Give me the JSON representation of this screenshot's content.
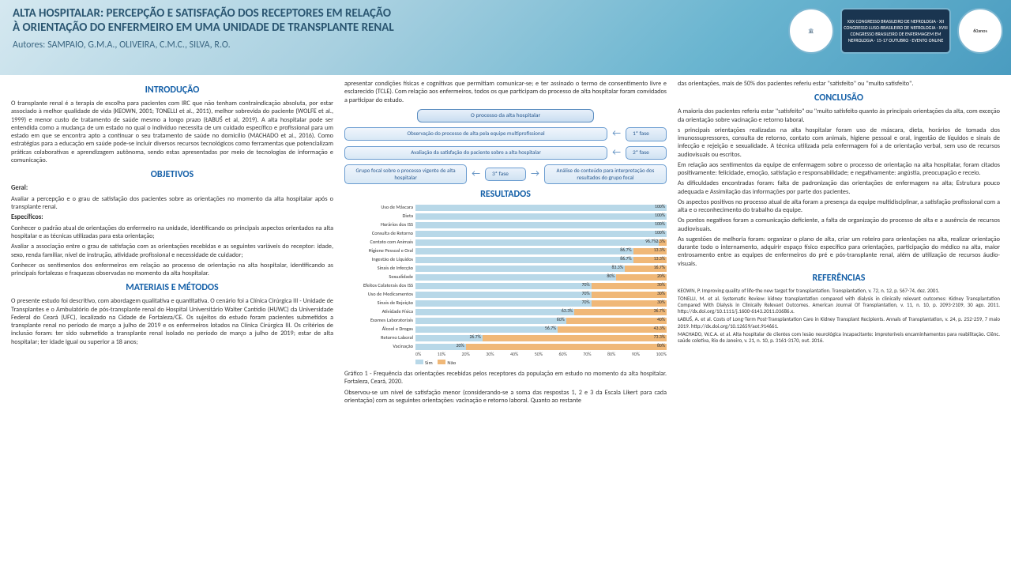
{
  "header": {
    "title_l1": "ALTA HOSPITALAR: PERCEPÇÃO E SATISFAÇÃO DOS RECEPTORES EM RELAÇÃO",
    "title_l2": "À ORIENTAÇÃO DO ENFERMEIRO EM UMA UNIDADE DE TRANSPLANTE RENAL",
    "authors": "Autores: SAMPAIO, G.M.A., OLIVEIRA, C.M.C., SILVA, R.O.",
    "logo_text": "XXX CONGRESSO BRASILEIRO DE NEFROLOGIA · XII CONGRESSO LUSO-BRASILEIRO DE NEFROLOGIA · XVIII CONGRESSO BRASILEIRO DE ENFERMAGEM EM NEFROLOGIA · 15-17 OUTUBRO · EVENTO ONLINE",
    "logo_years": "60anos"
  },
  "sections": {
    "intro_h": "INTRODUÇÃO",
    "intro": "O transplante renal é a terapia de escolha para pacientes com IRC que não tenham contraindicação absoluta, por estar associado à melhor qualidade de vida (KEOWN, 2001; TONELLI et al., 2011), melhor sobrevida do paciente (WOLFE et al., 1999) e menor custo de tratamento de saúde mesmo a longo prazo (ŁABUŚ et al, 2019). A alta hospitalar pode ser entendida como a mudança de um estado no qual o indivíduo necessita de um cuidado específico e profissional para um estado em que se encontra apto a continuar o seu tratamento de saúde no domicílio (MACHADO et al., 2016). Como estratégias para a educação em saúde pode-se incluir diversos recursos tecnológicos como ferramentas que potencializam práticas colaborativas e aprendizagem autônoma, sendo estas apresentadas por meio de tecnologias de informação e comunicação.",
    "obj_h": "OBJETIVOS",
    "obj_geral_label": "Geral:",
    "obj_geral": "Avaliar a percepção e o grau de satisfação dos pacientes sobre as orientações no momento da alta hospitalar após o transplante renal.",
    "obj_esp_label": "Específicos:",
    "obj_esp1": "Conhecer o padrão atual de orientações do enfermeiro na unidade, identificando os principais aspectos orientados na alta hospitalar e as técnicas utilizadas para esta orientação;",
    "obj_esp2": "Avaliar a associação entre o grau de satisfação com as orientações recebidas e as seguintes variáveis do receptor: idade, sexo, renda familiar, nível de instrução, atividade profissional e necessidade de cuidador;",
    "obj_esp3": "Conhecer os sentimentos dos enfermeiros em relação ao processo de orientação na alta hospitalar, identificando as principais fortalezas e fraquezas observadas no momento da alta hospitalar.",
    "mat_h": "MATERIAIS E MÉTODOS",
    "mat": "O presente estudo foi descritivo, com abordagem qualitativa e quantitativa. O cenário foi a Clínica Cirúrgica III - Unidade de Transplantes e o Ambulatório de pós-transplante renal do Hospital Universitário Walter Cantídio (HUWC) da Universidade Federal do Ceará (UFC), localizado na Cidade de Fortaleza/CE. Os sujeitos do estudo foram pacientes submetidos a transplante renal no período de março a julho de 2019 e os enfermeiros lotados na Clínica Cirúrgica III. Os critérios de inclusão foram: ter sido submetido a transplante renal isolado no período de março a julho de 2019; estar de alta hospitalar; ter idade igual ou superior a 18 anos;",
    "mat_cont": "apresentar condições físicas e cognitivas que permitiam comunicar-se; e ter assinado o termo de consentimento livre e esclarecido (TCLE). Com relação aos enfermeiros, todos os que participam do processo de alta hospitalar foram convidados a participar do estudo.",
    "res_h": "RESULTADOS",
    "caption": "Gráfico 1 - Frequência das orientações recebidas pelos receptores da população em estudo no momento da alta hospitalar. Fortaleza, Ceará, 2020.",
    "res_text": "Observou-se um nível de satisfação menor (considerando-se a soma das respostas 1, 2 e 3 da Escala Likert para cada orientação) com as seguintes orientações: vacinação e retorno laboral. Quanto ao restante",
    "res_cont": "das orientações, mais de 50% dos pacientes referiu estar \"satisfeito\" ou \"muito satisfeito\".",
    "conc_h": "CONCLUSÃO",
    "conc1": "A maioria dos pacientes referiu estar \"satisfeito\" ou \"muito satisfeito quanto às principais orientações da alta, com exceção da orientação sobre vacinação e retorno laboral.",
    "conc2": "s principais orientações realizadas na alta hospitalar foram uso de máscara, dieta, horários de tomada dos imunossupressores, consulta de retorno, contato com animais, higiene pessoal e oral, ingestão de líquidos e sinais de infecção e rejeição e sexualidade. A técnica utilizada pela enfermagem foi a de orientação verbal, sem uso de recursos audiovisuais ou escritos.",
    "conc3": "Em relação aos sentimentos da equipe de enfermagem sobre o processo de orientação na alta hospitalar, foram citados positivamente: felicidade, emoção, satisfação e responsabilidade; e negativamente: angústia, preocupação e receio.",
    "conc4": "As dificuldades encontradas foram: falta de padronização das orientações de enfermagem na alta; Estrutura pouco adequada e Assimilação das informações por parte dos pacientes.",
    "conc5": "Os aspectos positivos no processo atual de alta foram a presença da equipe multidisciplinar, a satisfação profissional com a alta e o reconhecimento do trabalho da equipe.",
    "conc6": "Os pontos negativos foram a comunicação deficiente, a falta de organização do processo de alta e a ausência de recursos audiovisuais.",
    "conc7": "As sugestões de melhoria foram: organizar o plano de alta, criar um roteiro para orientações na alta, realizar orientação durante todo o internamento, adquirir espaço físico específico para orientações, participação do médico na alta, maior entrosamento entre as equipes de enfermeiros do pré e pós-transplante renal, além de utilização de recursos áudio-visuais.",
    "ref_h": "REFERÊNCIAS",
    "ref1": "KEOWN, P. Improving quality of life-the new target for transplantation. Transplantation, v. 72, n. 12, p. S67-74, dez. 2001.",
    "ref2": "TONELLI, M. et al. Systematic Review: kidney transplantation compared with dialysis in clinically relevant outcomes: Kidney Transplantation Compared With Dialysis in Clinically Relevant Outcomes. American Journal Of Transplantation, v. 11, n. 10, p. 2093-2109, 30 ago. 2011. http://dx.doi.org/10.1111/j.1600-6143.2011.03686.x.",
    "ref3": "ŁABUŚ, A. et al. Costs of Long-Term Post-Transplantation Care in Kidney Transplant Recipients. Annals of Transplantation, v. 24, p. 252-259, 7 maio 2019. http://dx.doi.org/10.12659/aot.914661.",
    "ref4": "MACHADO, W.C.A. et al. Alta hospitalar de clientes com lesão neurológica incapacitante: impreteríveis encaminhamentos para reabilitação. Ciênc. saúde coletiva, Rio de Janeiro, v. 21, n. 10, p. 3161-3170, out. 2016."
  },
  "diagram": {
    "top": "O processo da alta hospitalar",
    "b1": "Observação do processo de alta pela equipe multiprofissional",
    "b2": "Avaliação da satisfação do paciente sobre a alta hospitalar",
    "b3": "Grupo focal sobre o processo vigente de alta hospitalar",
    "b4": "Análise de conteúdo para interpretação dos resultados do grupo focal",
    "p1": "1ª fase",
    "p2": "2ª fase",
    "p3": "3ª fase"
  },
  "chart": {
    "type": "stacked-horizontal-bar",
    "sim_color": "#b8d8e8",
    "nao_color": "#f0b878",
    "legend_sim": "Sim",
    "legend_nao": "Não",
    "xticks": [
      "0%",
      "10%",
      "20%",
      "30%",
      "40%",
      "50%",
      "60%",
      "70%",
      "80%",
      "90%",
      "100%"
    ],
    "rows": [
      {
        "label": "Uso de Máscara",
        "sim": 100,
        "nao": 0
      },
      {
        "label": "Dieta",
        "sim": 100,
        "nao": 0
      },
      {
        "label": "Horários dos ISS",
        "sim": 100,
        "nao": 0
      },
      {
        "label": "Consulta de Retorno",
        "sim": 100,
        "nao": 0
      },
      {
        "label": "Contato com Animais",
        "sim": 96.7,
        "nao": 3.3
      },
      {
        "label": "Higiene Pessoal e Oral",
        "sim": 86.7,
        "nao": 13.3
      },
      {
        "label": "Ingestão de Líquidos",
        "sim": 86.7,
        "nao": 13.3
      },
      {
        "label": "Sinais de Infecção",
        "sim": 83.3,
        "nao": 16.7
      },
      {
        "label": "Sexualidade",
        "sim": 80,
        "nao": 20
      },
      {
        "label": "Efeitos Colaterais dos ISS",
        "sim": 70,
        "nao": 30
      },
      {
        "label": "Uso de Medicamentos",
        "sim": 70,
        "nao": 30
      },
      {
        "label": "Sinais de Rejeição",
        "sim": 70,
        "nao": 30
      },
      {
        "label": "Atividade Física",
        "sim": 63.3,
        "nao": 36.7
      },
      {
        "label": "Exames Laboratoriais",
        "sim": 60,
        "nao": 40
      },
      {
        "label": "Álcool e Drogas",
        "sim": 56.7,
        "nao": 43.3
      },
      {
        "label": "Retorno Laboral",
        "sim": 26.7,
        "nao": 73.3
      },
      {
        "label": "Vacinação",
        "sim": 20,
        "nao": 80
      }
    ]
  }
}
